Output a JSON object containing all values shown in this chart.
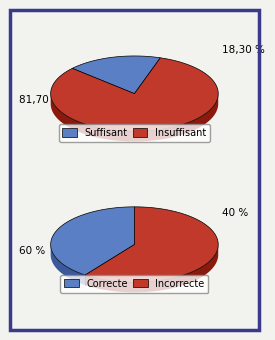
{
  "chart1": {
    "values": [
      18.3,
      81.7
    ],
    "colors": [
      "#5b7fc4",
      "#c0392b"
    ],
    "dark_colors": [
      "#3a5a9c",
      "#8b1a0e"
    ],
    "labels": [
      "18,30 %",
      "81,70 %"
    ],
    "legend_labels": [
      "Suffisant",
      "Insuffisant"
    ],
    "startangle": 72
  },
  "chart2": {
    "values": [
      40,
      60
    ],
    "colors": [
      "#5b7fc4",
      "#c0392b"
    ],
    "dark_colors": [
      "#3a5a9c",
      "#8b1a0e"
    ],
    "labels": [
      "40 %",
      "60 %"
    ],
    "legend_labels": [
      "Correcte",
      "Incorrecte"
    ],
    "startangle": 90
  },
  "background_color": "#f2f2ee",
  "border_color": "#3a3a8c",
  "text_color": "#000000",
  "label_fontsize": 7.5,
  "legend_fontsize": 7.0,
  "yscale": 0.45,
  "depth": 0.12
}
